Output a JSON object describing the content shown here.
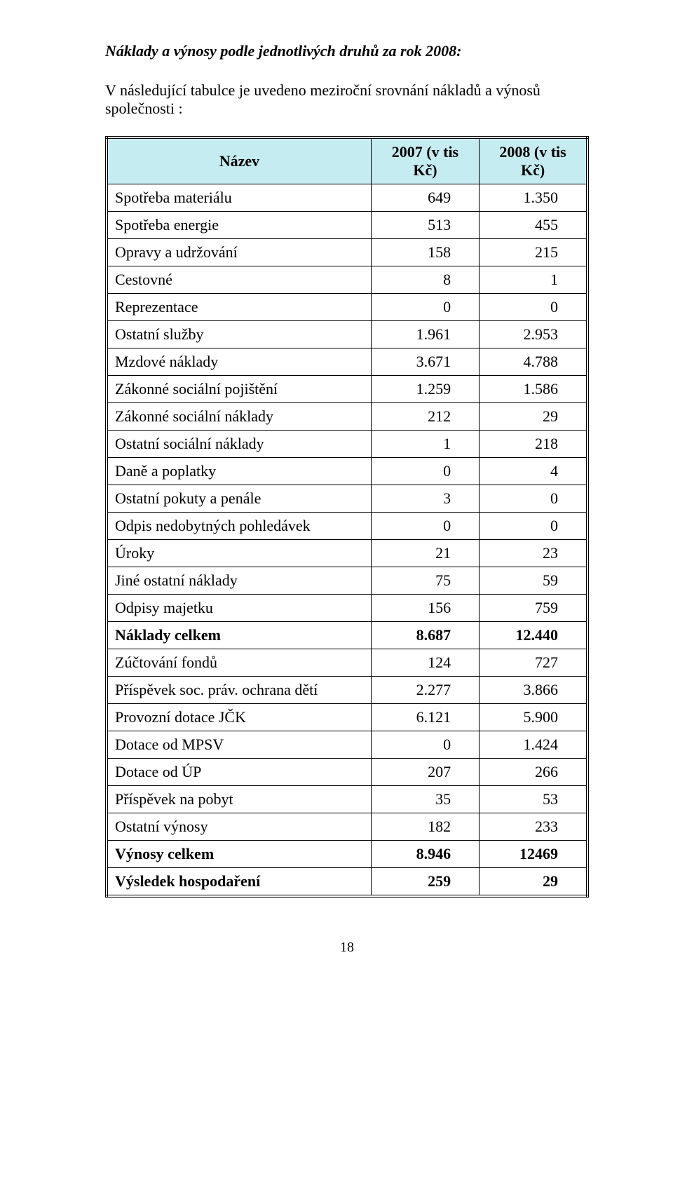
{
  "title": "Náklady a výnosy podle jednotlivých druhů za rok 2008:",
  "intro": "V následující tabulce je uvedeno meziroční srovnání nákladů a výnosů společnosti :",
  "table": {
    "header_bg": "#c5ecf0",
    "columns": [
      "Název",
      "2007 (v tis Kč)",
      "2008 (v tis Kč)"
    ],
    "col_widths": [
      "55%",
      "22.5%",
      "22.5%"
    ],
    "rows": [
      {
        "label": "Spotřeba materiálu",
        "c1": "649",
        "c2": "1.350",
        "bold": false
      },
      {
        "label": "Spotřeba energie",
        "c1": "513",
        "c2": "455",
        "bold": false
      },
      {
        "label": "Opravy a udržování",
        "c1": "158",
        "c2": "215",
        "bold": false
      },
      {
        "label": "Cestovné",
        "c1": "8",
        "c2": "1",
        "bold": false
      },
      {
        "label": "Reprezentace",
        "c1": "0",
        "c2": "0",
        "bold": false
      },
      {
        "label": "Ostatní služby",
        "c1": "1.961",
        "c2": "2.953",
        "bold": false
      },
      {
        "label": "Mzdové náklady",
        "c1": "3.671",
        "c2": "4.788",
        "bold": false
      },
      {
        "label": "Zákonné sociální pojištění",
        "c1": "1.259",
        "c2": "1.586",
        "bold": false
      },
      {
        "label": "Zákonné sociální náklady",
        "c1": "212",
        "c2": "29",
        "bold": false
      },
      {
        "label": "Ostatní sociální náklady",
        "c1": "1",
        "c2": "218",
        "bold": false
      },
      {
        "label": "Daně a poplatky",
        "c1": "0",
        "c2": "4",
        "bold": false
      },
      {
        "label": "Ostatní pokuty a penále",
        "c1": "3",
        "c2": "0",
        "bold": false
      },
      {
        "label": "Odpis nedobytných pohledávek",
        "c1": "0",
        "c2": "0",
        "bold": false
      },
      {
        "label": "Úroky",
        "c1": "21",
        "c2": "23",
        "bold": false
      },
      {
        "label": "Jiné ostatní náklady",
        "c1": "75",
        "c2": "59",
        "bold": false
      },
      {
        "label": "Odpisy majetku",
        "c1": "156",
        "c2": "759",
        "bold": false
      },
      {
        "label": "Náklady celkem",
        "c1": "8.687",
        "c2": "12.440",
        "bold": true
      },
      {
        "label": "Zúčtování fondů",
        "c1": "124",
        "c2": "727",
        "bold": false
      },
      {
        "label": "Příspěvek soc. práv. ochrana dětí",
        "c1": "2.277",
        "c2": "3.866",
        "bold": false
      },
      {
        "label": "Provozní dotace JČK",
        "c1": "6.121",
        "c2": "5.900",
        "bold": false
      },
      {
        "label": "Dotace od MPSV",
        "c1": "0",
        "c2": "1.424",
        "bold": false
      },
      {
        "label": "Dotace od ÚP",
        "c1": "207",
        "c2": "266",
        "bold": false
      },
      {
        "label": "Příspěvek na pobyt",
        "c1": "35",
        "c2": "53",
        "bold": false
      },
      {
        "label": "Ostatní výnosy",
        "c1": "182",
        "c2": "233",
        "bold": false
      },
      {
        "label": "Výnosy celkem",
        "c1": "8.946",
        "c2": "12469",
        "bold": true
      },
      {
        "label": "Výsledek hospodaření",
        "c1": "259",
        "c2": "29",
        "bold": true
      }
    ]
  },
  "page_number": "18"
}
